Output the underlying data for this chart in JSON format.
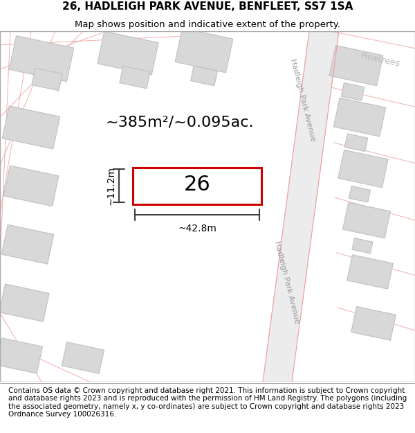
{
  "title_line1": "26, HADLEIGH PARK AVENUE, BENFLEET, SS7 1SA",
  "title_line2": "Map shows position and indicative extent of the property.",
  "footer_text": "Contains OS data © Crown copyright and database right 2021. This information is subject to Crown copyright and database rights 2023 and is reproduced with the permission of HM Land Registry. The polygons (including the associated geometry, namely x, y co-ordinates) are subject to Crown copyright and database rights 2023 Ordnance Survey 100026316.",
  "area_text": "~385m²/~0.095ac.",
  "number_text": "26",
  "width_label": "~42.8m",
  "height_label": "~11.2m",
  "street_label1": "Hadleigh Park Avenue",
  "street_label2": "Hadleigh Park Avenue",
  "pinetrees_label": "Pinetrees",
  "map_bg": "#ffffff",
  "building_color": "#d8d8d8",
  "building_border": "#c0c0c0",
  "plot_outline_color": "#cc0000",
  "road_line_color": "#f0a0a0",
  "dim_line_color": "#404040",
  "title_fontsize": 11,
  "subtitle_fontsize": 9.5,
  "footer_fontsize": 7.5
}
